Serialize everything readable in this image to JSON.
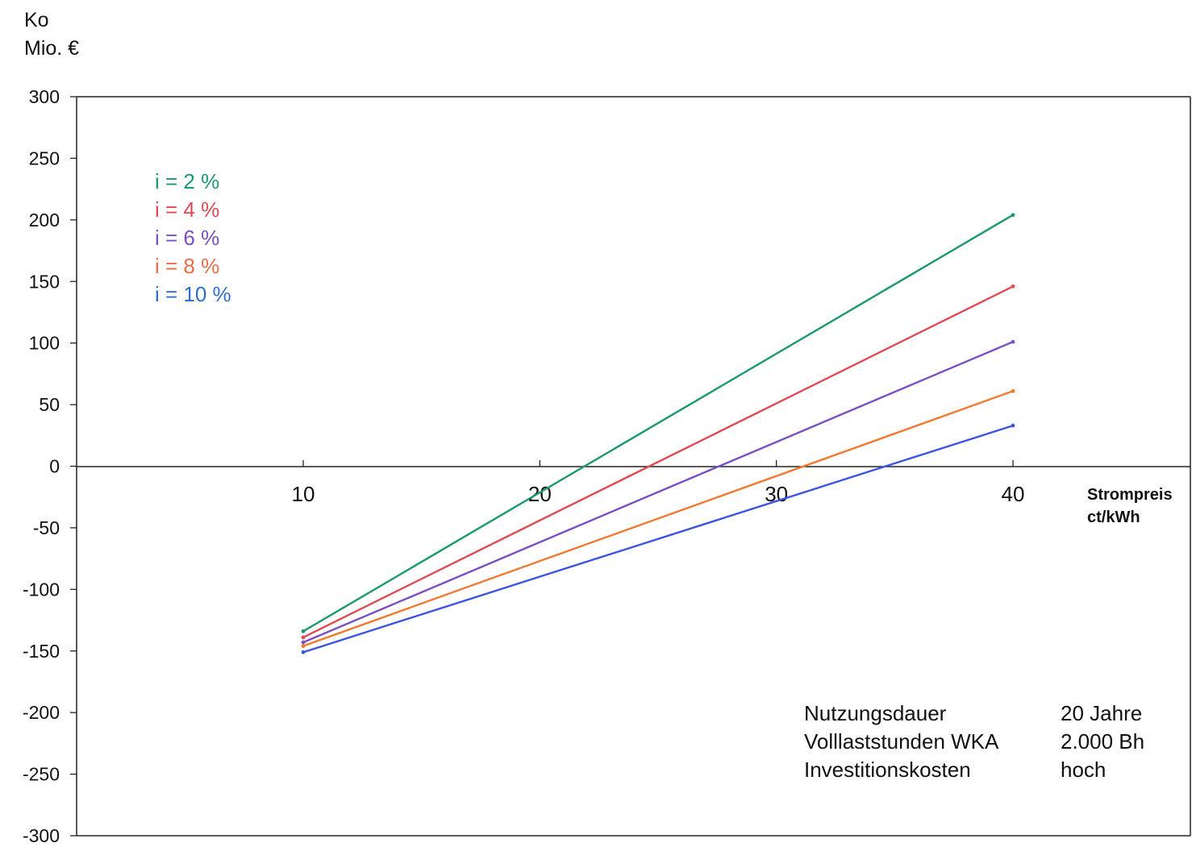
{
  "y_title": [
    "Ko",
    "Mio. €"
  ],
  "x_label": [
    "Strompreis",
    "ct/kWh"
  ],
  "legend": [
    {
      "label": "i = 2 %",
      "color": "#1a9a6a"
    },
    {
      "label": "i = 4 %",
      "color": "#e04a55"
    },
    {
      "label": "i = 6 %",
      "color": "#7b4fc4"
    },
    {
      "label": "i = 8 %",
      "color": "#ee6a48"
    },
    {
      "label": "i = 10 %",
      "color": "#2f6fd0"
    }
  ],
  "info": [
    {
      "label": "Nutzungsdauer",
      "value": "20 Jahre"
    },
    {
      "label": "Volllaststunden WKA",
      "value": "2.000 Bh"
    },
    {
      "label": "Investitionskosten",
      "value": "hoch"
    }
  ],
  "chart_data": {
    "type": "line",
    "title": "",
    "xlabel": "Strompreis ct/kWh",
    "ylabel": "Ko Mio. €",
    "xlim": [
      0.5,
      44
    ],
    "ylim": [
      -300,
      300
    ],
    "x_ticks": [
      10,
      20,
      30,
      40
    ],
    "y_ticks": [
      300,
      250,
      200,
      150,
      100,
      50,
      0,
      -50,
      -100,
      -150,
      -200,
      -250,
      -300
    ],
    "grid": false,
    "legend_position": "top-left",
    "series": [
      {
        "name": "i = 2 %",
        "color": "#1a9a6a",
        "x": [
          10,
          40
        ],
        "y": [
          -134,
          204
        ]
      },
      {
        "name": "i = 4 %",
        "color": "#e04a55",
        "x": [
          10,
          40
        ],
        "y": [
          -139,
          146
        ]
      },
      {
        "name": "i = 6 %",
        "color": "#7b4fc4",
        "x": [
          10,
          40
        ],
        "y": [
          -143,
          101
        ]
      },
      {
        "name": "i = 8 %",
        "color": "#f07a30",
        "x": [
          10,
          40
        ],
        "y": [
          -146,
          61
        ]
      },
      {
        "name": "i = 10 %",
        "color": "#3a55e0",
        "x": [
          10,
          40
        ],
        "y": [
          -151,
          33
        ]
      }
    ]
  }
}
